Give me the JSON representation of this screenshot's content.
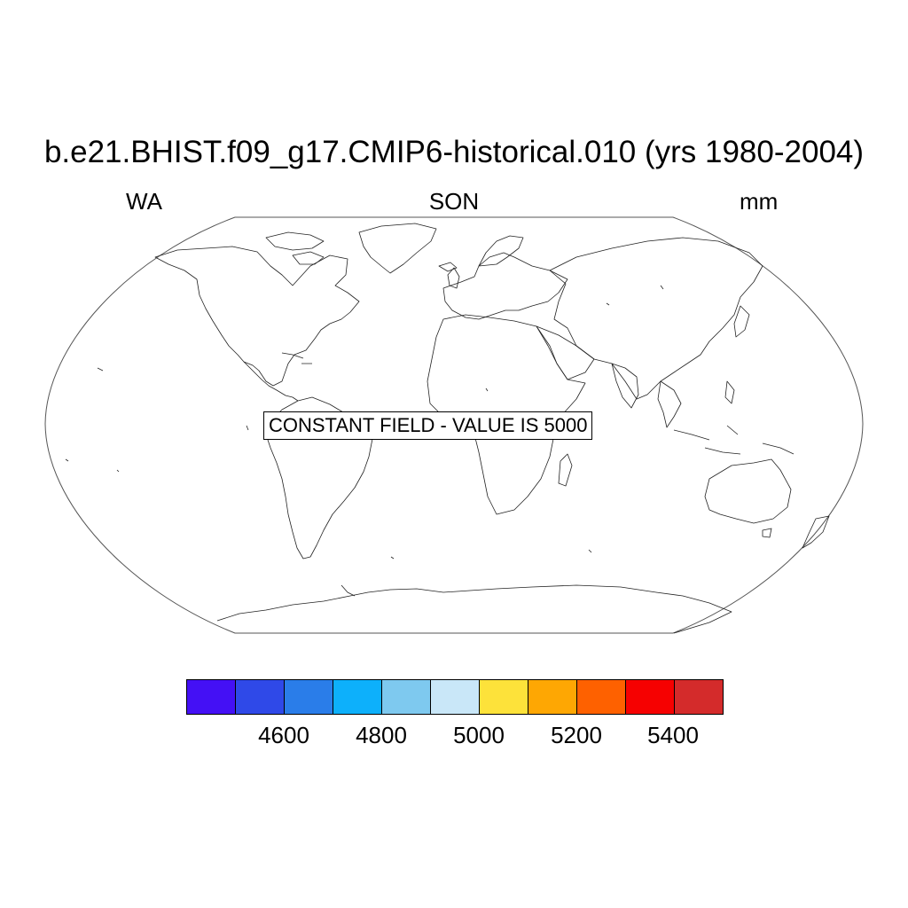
{
  "map": {
    "title": "b.e21.BHIST.f09_g17.CMIP6-historical.010 (yrs 1980-2004)",
    "left_label": "WA",
    "center_label": "SON",
    "right_label": "mm",
    "notice": "CONSTANT FIELD - VALUE IS 5000",
    "projection": "Robinson",
    "constant_value": 5000
  },
  "colorbar": {
    "colors": [
      "#4410f5",
      "#2f49e8",
      "#2a7de9",
      "#0db0fb",
      "#7ec9ef",
      "#c9e7f8",
      "#fde23a",
      "#fea703",
      "#fe6100",
      "#f60101",
      "#d42b2b"
    ],
    "levels": [
      4500,
      4600,
      4700,
      4800,
      4900,
      5000,
      5100,
      5200,
      5300,
      5400
    ],
    "tick_labels": [
      "4600",
      "4800",
      "5000",
      "5200",
      "5400"
    ]
  }
}
